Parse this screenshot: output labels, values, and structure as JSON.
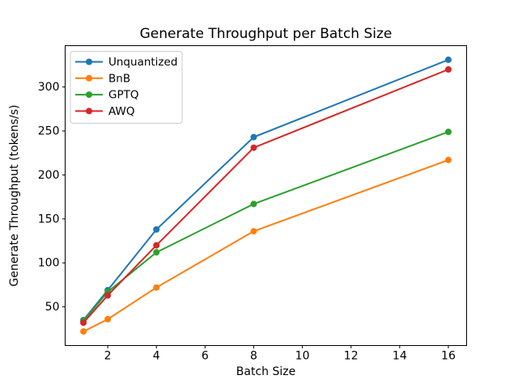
{
  "chart_data": {
    "type": "line",
    "title": "Generate Throughput per Batch Size",
    "xlabel": "Batch Size",
    "ylabel": "Generate Throughput (tokens/s)",
    "x": [
      1,
      2,
      4,
      8,
      16
    ],
    "series": [
      {
        "name": "Unquantized",
        "color": "#1f77b4",
        "values": [
          35,
          69,
          138,
          243,
          331
        ]
      },
      {
        "name": "BnB",
        "color": "#ff7f0e",
        "values": [
          22,
          36,
          72,
          136,
          217
        ]
      },
      {
        "name": "GPTQ",
        "color": "#2ca02c",
        "values": [
          34,
          67,
          112,
          167,
          249
        ]
      },
      {
        "name": "AWQ",
        "color": "#d62728",
        "values": [
          32,
          63,
          120,
          231,
          320
        ]
      }
    ],
    "xticks": [
      2,
      4,
      6,
      8,
      10,
      12,
      14,
      16
    ],
    "yticks": [
      50,
      100,
      150,
      200,
      250,
      300
    ],
    "xlim": [
      0.25,
      16.75
    ],
    "ylim": [
      6,
      347
    ],
    "grid": false,
    "legend_position": "upper left",
    "marker": "o",
    "axes_frame_color": "#000000",
    "legend_border_color": "#cccccc",
    "background_color": "#ffffff"
  }
}
